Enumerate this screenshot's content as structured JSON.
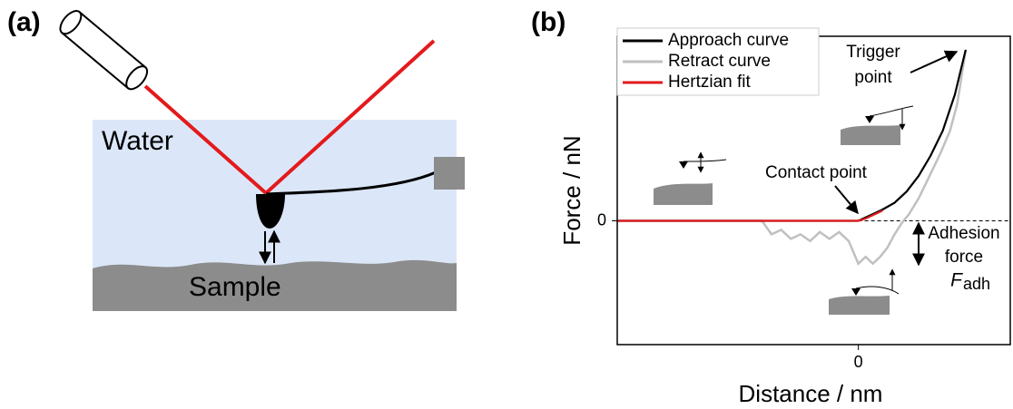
{
  "panels": {
    "a": {
      "label": "(a)",
      "water": "Water",
      "sample": "Sample"
    }
  },
  "chart_data": {
    "type": "line",
    "panel_label": "(b)",
    "x_label": "Distance / nm",
    "y_label": "Force / nN",
    "xlim": [
      -10,
      6.3
    ],
    "ylim": [
      -5.5,
      8.2
    ],
    "xticks": [
      0
    ],
    "yticks": [
      0
    ],
    "zero_line": true,
    "legend": "top-left",
    "series": [
      {
        "name": "Approach curve",
        "color": "#000000",
        "x": [
          -10,
          -4,
          0,
          0.2,
          0.6,
          1.0,
          1.5,
          2.0,
          2.5,
          3.0,
          3.5,
          4.0,
          4.45
        ],
        "values": [
          0,
          0,
          0,
          0.1,
          0.3,
          0.5,
          0.8,
          1.3,
          2.0,
          2.9,
          4.0,
          5.6,
          7.6
        ]
      },
      {
        "name": "Retract curve",
        "color": "#c0c0c0",
        "x": [
          -10,
          -4,
          -3.6,
          -3.2,
          -2.8,
          -2.4,
          -2.0,
          -1.6,
          -1.2,
          -0.8,
          -0.4,
          0,
          0.3,
          0.6,
          0.9,
          1.2,
          1.5,
          1.8,
          2.1,
          2.5,
          3.0,
          3.4,
          3.8,
          4.1,
          4.45
        ],
        "values": [
          0,
          0,
          -0.6,
          -0.4,
          -0.8,
          -0.6,
          -0.9,
          -0.5,
          -0.8,
          -0.5,
          -0.9,
          -1.9,
          -1.6,
          -1.9,
          -1.6,
          -1.2,
          -0.6,
          -0.1,
          0.3,
          1.0,
          2.1,
          3.0,
          4.0,
          5.2,
          7.6
        ]
      },
      {
        "name": "Hertzian fit",
        "color": "#e31a1c",
        "x": [
          -10,
          -4,
          0,
          0.3,
          0.6,
          1.0
        ],
        "values": [
          0,
          0,
          0,
          0.1,
          0.25,
          0.45
        ]
      }
    ],
    "annotations": {
      "trigger": [
        "Trigger",
        "point"
      ],
      "contact": "Contact point",
      "adhesion": [
        "Adhesion",
        "force"
      ],
      "adhesion_symbol": {
        "symbol": "F",
        "subscript": "adh"
      }
    }
  }
}
